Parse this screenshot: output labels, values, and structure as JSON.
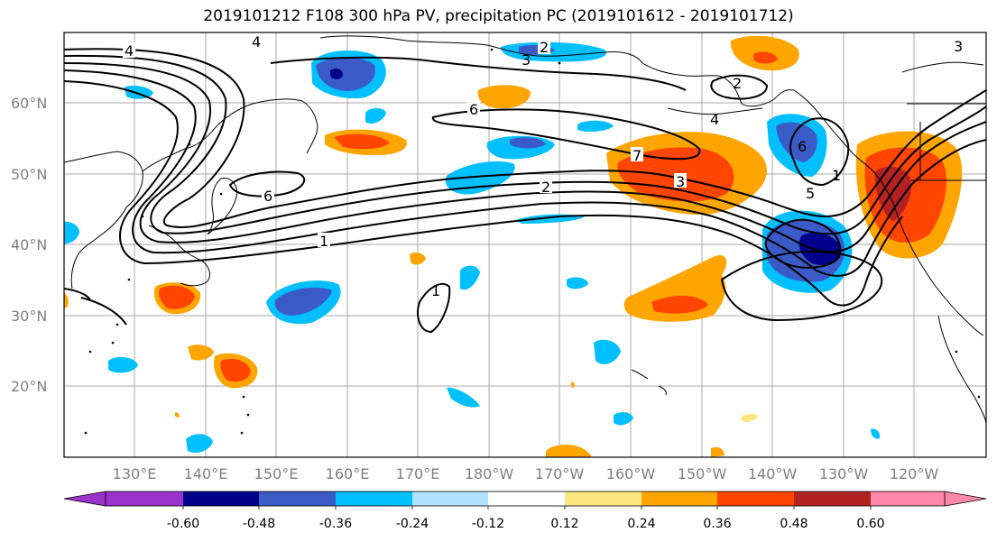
{
  "title": "2019101212 F108 300 hPa PV, precipitation PC (2019101612 - 2019101712)",
  "lat_labels": [
    "60°N",
    "50°N",
    "40°N",
    "30°N",
    "20°N"
  ],
  "lon_labels": [
    "130°E",
    "140°E",
    "150°E",
    "160°E",
    "170°E",
    "180°W",
    "170°W",
    "160°W",
    "150°W",
    "140°W",
    "130°W",
    "120°W"
  ],
  "colorbar": {
    "tick_labels": [
      "-0.60",
      "-0.48",
      "-0.36",
      "-0.24",
      "-0.12",
      "0.12",
      "0.24",
      "0.36",
      "0.48",
      "0.60"
    ],
    "colors": [
      "#9933cc",
      "#00008b",
      "#3a5bc7",
      "#00bfff",
      "#b0e2ff",
      "#ffffff",
      "#ffe680",
      "#ffa500",
      "#ff4500",
      "#b22222",
      "#ff88aa"
    ]
  },
  "contour_labels": {
    "a": "4",
    "b": "4",
    "c": "2",
    "d": "3",
    "e": "2",
    "f": "6",
    "g": "7",
    "h": "3",
    "i": "2",
    "j": "6",
    "k": "1",
    "l": "4",
    "m": "6",
    "n": "5",
    "o": "1",
    "p": "1",
    "q": "3"
  }
}
